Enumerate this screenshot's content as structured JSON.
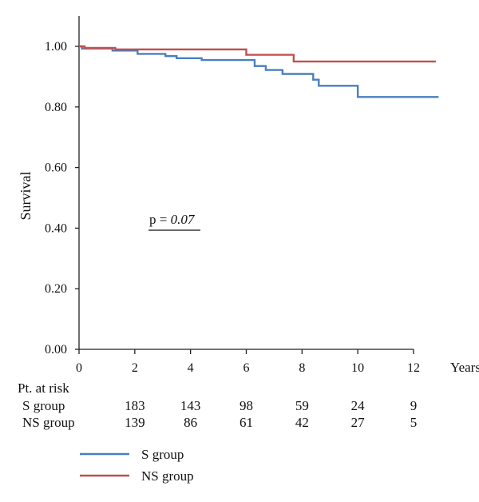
{
  "chart_data": {
    "type": "line",
    "step": true,
    "xlabel": "Years",
    "ylabel": "Survival",
    "xlim": [
      0,
      12
    ],
    "ylim": [
      0,
      1.0
    ],
    "xticks": [
      0,
      2,
      4,
      6,
      8,
      10,
      12
    ],
    "xtick_labels": [
      "0",
      "2",
      "4",
      "6",
      "8",
      "10",
      "12"
    ],
    "yticks": [
      0,
      0.2,
      0.4,
      0.6,
      0.8,
      1.0
    ],
    "ytick_labels": [
      "0.00",
      "0.20",
      "0.40",
      "0.60",
      "0.80",
      "1.00"
    ],
    "grid": false,
    "legend_position": "bottom-left",
    "series": [
      {
        "name": "S group",
        "color": "#4a7fc1",
        "x": [
          0,
          0.1,
          1.2,
          2.1,
          3.1,
          3.5,
          4.4,
          6.3,
          6.7,
          7.3,
          8.4,
          8.6,
          10.0,
          12.9
        ],
        "y": [
          1.0,
          0.993,
          0.986,
          0.975,
          0.968,
          0.961,
          0.955,
          0.935,
          0.922,
          0.909,
          0.89,
          0.87,
          0.833,
          0.833
        ]
      },
      {
        "name": "NS group",
        "color": "#c0504d",
        "x": [
          0,
          0.2,
          1.3,
          6.0,
          7.7,
          12.8
        ],
        "y": [
          1.0,
          0.995,
          0.99,
          0.972,
          0.95,
          0.95
        ]
      }
    ],
    "annotation": {
      "text_prefix": "p = ",
      "text_value": "0.07",
      "x": 2.5,
      "y": 0.42
    },
    "at_risk": {
      "title": "Pt. at risk",
      "rows": [
        {
          "label": "S group",
          "values": [
            "183",
            "143",
            "98",
            "59",
            "24",
            "9"
          ]
        },
        {
          "label": "NS group",
          "values": [
            "139",
            "86",
            "61",
            "42",
            "27",
            "5"
          ]
        }
      ],
      "x": [
        2,
        4,
        6,
        8,
        10,
        12
      ]
    }
  }
}
